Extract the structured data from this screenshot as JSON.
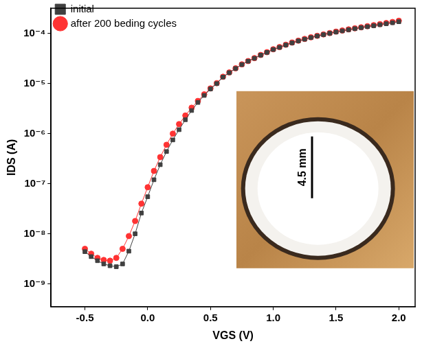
{
  "chart_data": {
    "type": "line",
    "x_label": "VGS (V)",
    "y_label": "IDS (A)",
    "annotations": [
      "4.5 mm"
    ],
    "x": [
      -0.5,
      -0.45,
      -0.4,
      -0.35,
      -0.3,
      -0.25,
      -0.2,
      -0.15,
      -0.1,
      -0.05,
      0.0,
      0.05,
      0.1,
      0.15,
      0.2,
      0.25,
      0.3,
      0.35,
      0.4,
      0.45,
      0.5,
      0.55,
      0.6,
      0.65,
      0.7,
      0.75,
      0.8,
      0.85,
      0.9,
      0.95,
      1.0,
      1.05,
      1.1,
      1.15,
      1.2,
      1.25,
      1.3,
      1.35,
      1.4,
      1.45,
      1.5,
      1.55,
      1.6,
      1.65,
      1.7,
      1.75,
      1.8,
      1.85,
      1.9,
      1.95,
      2.0
    ],
    "series": [
      {
        "name": "initial",
        "color": "#404040",
        "marker": "square",
        "values": [
          4.4e-09,
          3.5e-09,
          2.9e-09,
          2.5e-09,
          2.3e-09,
          2.2e-09,
          2.5e-09,
          4.5e-09,
          1e-08,
          2.6e-08,
          5.5e-08,
          1.2e-07,
          2.4e-07,
          4.4e-07,
          7.5e-07,
          1.2e-06,
          1.9e-06,
          2.9e-06,
          4.2e-06,
          5.8e-06,
          7.8e-06,
          1e-05,
          1.35e-05,
          1.65e-05,
          2e-05,
          2.4e-05,
          2.8e-05,
          3.2e-05,
          3.7e-05,
          4.2e-05,
          4.8e-05,
          5.3e-05,
          5.9e-05,
          6.5e-05,
          7.1e-05,
          7.7e-05,
          8.3e-05,
          8.9e-05,
          9.5e-05,
          0.000101,
          0.000107,
          0.000113,
          0.000119,
          0.000125,
          0.000131,
          0.000137,
          0.000143,
          0.00015,
          0.000157,
          0.000164,
          0.000172
        ]
      },
      {
        "name": "after 200 beding cycles",
        "color": "#ff3333",
        "marker": "circle",
        "values": [
          5e-09,
          4e-09,
          3.3e-09,
          3e-09,
          2.9e-09,
          3.3e-09,
          5e-09,
          9e-09,
          1.8e-08,
          4e-08,
          8.5e-08,
          1.8e-07,
          3.4e-07,
          6e-07,
          1e-06,
          1.55e-06,
          2.3e-06,
          3.3e-06,
          4.5e-06,
          6.1e-06,
          8e-06,
          1.02e-05,
          1.37e-05,
          1.67e-05,
          2.02e-05,
          2.42e-05,
          2.82e-05,
          3.23e-05,
          3.73e-05,
          4.24e-05,
          4.85e-05,
          5.36e-05,
          5.97e-05,
          6.58e-05,
          7.2e-05,
          7.8e-05,
          8.4e-05,
          9e-05,
          9.6e-05,
          0.000102,
          0.000109,
          0.000115,
          0.000121,
          0.000127,
          0.000133,
          0.00014,
          0.000147,
          0.000154,
          0.000162,
          0.00017,
          0.00018
        ]
      }
    ],
    "xlim": [
      -0.77,
      2.13
    ],
    "xticks": [
      -0.5,
      {
        "value": 0,
        "label": "0.0"
      },
      0.5,
      {
        "value": 1,
        "label": "1.0"
      },
      1.5,
      {
        "value": 2,
        "label": "2.0"
      }
    ],
    "ylim": [
      3.5e-10,
      0.00032
    ],
    "yticks": [
      {
        "value": 1e-09,
        "label": "10⁻⁹"
      },
      {
        "value": 1e-08,
        "label": "10⁻⁸"
      },
      {
        "value": 1e-07,
        "label": "10⁻⁷"
      },
      {
        "value": 1e-06,
        "label": "10⁻⁶"
      },
      {
        "value": 1e-05,
        "label": "10⁻⁵"
      },
      {
        "value": 0.0001,
        "label": "10⁻⁴"
      }
    ],
    "log": "y",
    "grid": false,
    "legend": "upper left"
  }
}
